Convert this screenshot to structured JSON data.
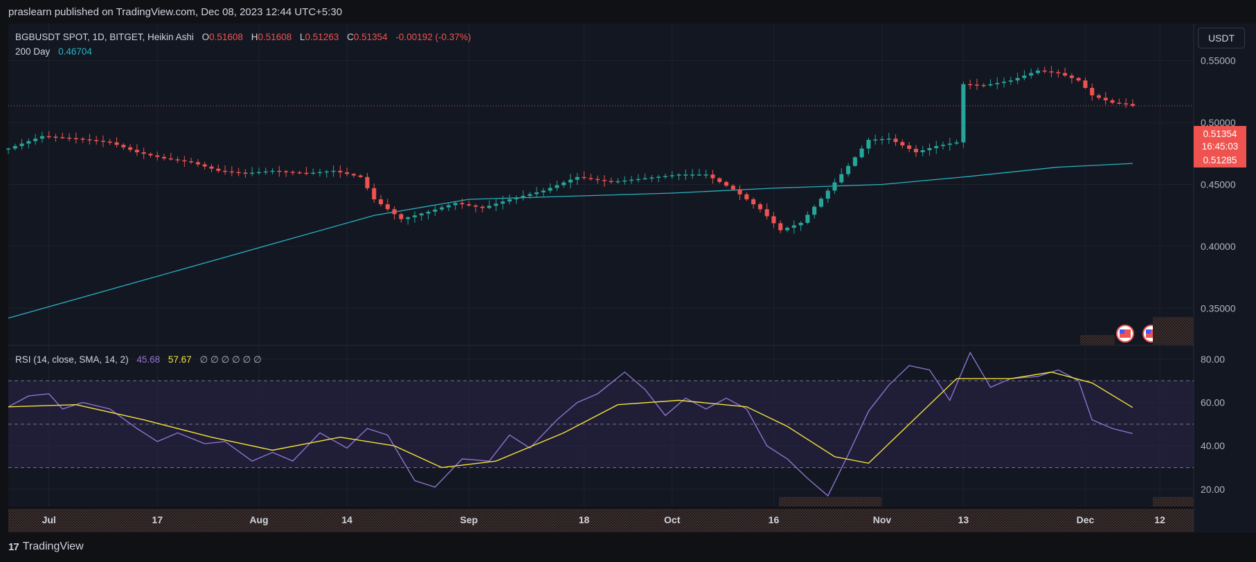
{
  "header": {
    "published_text": "praslearn published on TradingView.com, Dec 08, 2023 12:44 UTC+5:30"
  },
  "legend": {
    "symbol": "BGBUSDT SPOT, 1D, BITGET, Heikin Ashi",
    "o_label": "O",
    "o_value": "0.51608",
    "h_label": "H",
    "h_value": "0.51608",
    "l_label": "L",
    "l_value": "0.51263",
    "c_label": "C",
    "c_value": "0.51354",
    "change": "-0.00192 (-0.37%)",
    "ma_label": "200 Day",
    "ma_value": "0.46704"
  },
  "rsi_legend": {
    "label": "RSI (14, close, SMA, 14, 2)",
    "rsi_value": "45.68",
    "sma_value": "57.67",
    "extras": "∅ ∅ ∅ ∅ ∅ ∅"
  },
  "currency_button": "USDT",
  "price_badge": {
    "price": "0.51354",
    "countdown": "16:45:03",
    "ma": "0.51285"
  },
  "footer": {
    "brand": "TradingView",
    "logo_glyph": "17"
  },
  "colors": {
    "up": "#26a69a",
    "down": "#ef5350",
    "ma": "#2ab3c2",
    "rsi": "#7e57c2",
    "rsi_sma": "#f5e33b",
    "background": "#131722"
  },
  "chart_data": [
    {
      "type": "candlestick",
      "chart_style": "Heikin Ashi",
      "symbol": "BGBUSDT",
      "interval": "1D",
      "y_ticks": [
        "0.35000",
        "0.40000",
        "0.45000",
        "0.50000",
        "0.55000"
      ],
      "ylim": [
        0.32,
        0.58
      ],
      "x_ticks": [
        "Jul",
        "17",
        "Aug",
        "14",
        "Sep",
        "18",
        "Oct",
        "16",
        "Nov",
        "13",
        "Dec",
        "12"
      ],
      "x_tick_dates": [
        "2023-07-01",
        "2023-07-17",
        "2023-08-01",
        "2023-08-14",
        "2023-09-01",
        "2023-09-18",
        "2023-10-01",
        "2023-10-16",
        "2023-11-01",
        "2023-11-13",
        "2023-12-01",
        "2023-12-12"
      ],
      "x_range": [
        "2023-06-25",
        "2023-12-17"
      ],
      "last_price": 0.51354,
      "close_anchors": [
        [
          "2023-06-25",
          0.479
        ],
        [
          "2023-06-30",
          0.489
        ],
        [
          "2023-07-05",
          0.487
        ],
        [
          "2023-07-10",
          0.484
        ],
        [
          "2023-07-14",
          0.476
        ],
        [
          "2023-07-18",
          0.471
        ],
        [
          "2023-07-22",
          0.468
        ],
        [
          "2023-07-26",
          0.461
        ],
        [
          "2023-07-30",
          0.459
        ],
        [
          "2023-08-03",
          0.461
        ],
        [
          "2023-08-08",
          0.459
        ],
        [
          "2023-08-12",
          0.461
        ],
        [
          "2023-08-16",
          0.456
        ],
        [
          "2023-08-18",
          0.438
        ],
        [
          "2023-08-22",
          0.422
        ],
        [
          "2023-08-26",
          0.428
        ],
        [
          "2023-08-30",
          0.435
        ],
        [
          "2023-09-03",
          0.431
        ],
        [
          "2023-09-07",
          0.438
        ],
        [
          "2023-09-12",
          0.445
        ],
        [
          "2023-09-17",
          0.456
        ],
        [
          "2023-09-22",
          0.452
        ],
        [
          "2023-09-27",
          0.455
        ],
        [
          "2023-10-02",
          0.458
        ],
        [
          "2023-10-06",
          0.458
        ],
        [
          "2023-10-10",
          0.446
        ],
        [
          "2023-10-14",
          0.43
        ],
        [
          "2023-10-17",
          0.413
        ],
        [
          "2023-10-20",
          0.419
        ],
        [
          "2023-10-24",
          0.445
        ],
        [
          "2023-10-27",
          0.465
        ],
        [
          "2023-10-30",
          0.486
        ],
        [
          "2023-11-02",
          0.487
        ],
        [
          "2023-11-06",
          0.476
        ],
        [
          "2023-11-09",
          0.481
        ],
        [
          "2023-11-12",
          0.484
        ],
        [
          "2023-11-13",
          0.531
        ],
        [
          "2023-11-16",
          0.53
        ],
        [
          "2023-11-20",
          0.534
        ],
        [
          "2023-11-24",
          0.542
        ],
        [
          "2023-11-27",
          0.54
        ],
        [
          "2023-11-30",
          0.534
        ],
        [
          "2023-12-02",
          0.522
        ],
        [
          "2023-12-05",
          0.516
        ],
        [
          "2023-12-07",
          0.515
        ],
        [
          "2023-12-08",
          0.51354
        ]
      ],
      "ma200": {
        "name": "200 Day",
        "points": [
          [
            "2023-06-25",
            0.342
          ],
          [
            "2023-08-18",
            0.425
          ],
          [
            "2023-09-01",
            0.438
          ],
          [
            "2023-10-01",
            0.443
          ],
          [
            "2023-10-16",
            0.447
          ],
          [
            "2023-11-01",
            0.45
          ],
          [
            "2023-11-13",
            0.456
          ],
          [
            "2023-11-27",
            0.464
          ],
          [
            "2023-12-08",
            0.467
          ]
        ]
      }
    },
    {
      "type": "line",
      "indicator": "RSI (14, close, SMA, 14, 2)",
      "y_ticks": [
        "20.00",
        "40.00",
        "60.00",
        "80.00"
      ],
      "ylim": [
        12,
        86
      ],
      "bands": [
        30,
        50,
        70
      ],
      "series": [
        {
          "name": "RSI",
          "points": [
            [
              "2023-06-25",
              58
            ],
            [
              "2023-06-28",
              63
            ],
            [
              "2023-07-01",
              64
            ],
            [
              "2023-07-03",
              57
            ],
            [
              "2023-07-06",
              60
            ],
            [
              "2023-07-10",
              57
            ],
            [
              "2023-07-14",
              48
            ],
            [
              "2023-07-17",
              42
            ],
            [
              "2023-07-20",
              46
            ],
            [
              "2023-07-24",
              41
            ],
            [
              "2023-07-27",
              42
            ],
            [
              "2023-07-31",
              33
            ],
            [
              "2023-08-03",
              37
            ],
            [
              "2023-08-06",
              33
            ],
            [
              "2023-08-10",
              46
            ],
            [
              "2023-08-14",
              39
            ],
            [
              "2023-08-17",
              48
            ],
            [
              "2023-08-20",
              45
            ],
            [
              "2023-08-24",
              24
            ],
            [
              "2023-08-27",
              21
            ],
            [
              "2023-08-31",
              34
            ],
            [
              "2023-09-04",
              33
            ],
            [
              "2023-09-07",
              45
            ],
            [
              "2023-09-10",
              39
            ],
            [
              "2023-09-14",
              52
            ],
            [
              "2023-09-17",
              60
            ],
            [
              "2023-09-20",
              64
            ],
            [
              "2023-09-24",
              74
            ],
            [
              "2023-09-27",
              66
            ],
            [
              "2023-09-30",
              54
            ],
            [
              "2023-10-03",
              62
            ],
            [
              "2023-10-06",
              57
            ],
            [
              "2023-10-09",
              62
            ],
            [
              "2023-10-12",
              57
            ],
            [
              "2023-10-15",
              40
            ],
            [
              "2023-10-18",
              34
            ],
            [
              "2023-10-21",
              25
            ],
            [
              "2023-10-24",
              17
            ],
            [
              "2023-10-27",
              36
            ],
            [
              "2023-10-30",
              56
            ],
            [
              "2023-11-02",
              68
            ],
            [
              "2023-11-05",
              77
            ],
            [
              "2023-11-08",
              75
            ],
            [
              "2023-11-11",
              61
            ],
            [
              "2023-11-14",
              83
            ],
            [
              "2023-11-17",
              67
            ],
            [
              "2023-11-20",
              71
            ],
            [
              "2023-11-24",
              72
            ],
            [
              "2023-11-27",
              75
            ],
            [
              "2023-11-30",
              70
            ],
            [
              "2023-12-02",
              52
            ],
            [
              "2023-12-05",
              48
            ],
            [
              "2023-12-08",
              45.68
            ]
          ]
        },
        {
          "name": "SMA",
          "points": [
            [
              "2023-06-25",
              58
            ],
            [
              "2023-07-05",
              59
            ],
            [
              "2023-07-15",
              52
            ],
            [
              "2023-07-25",
              44
            ],
            [
              "2023-08-03",
              38
            ],
            [
              "2023-08-13",
              44
            ],
            [
              "2023-08-21",
              40
            ],
            [
              "2023-08-28",
              30
            ],
            [
              "2023-09-05",
              33
            ],
            [
              "2023-09-15",
              46
            ],
            [
              "2023-09-23",
              59
            ],
            [
              "2023-10-02",
              61
            ],
            [
              "2023-10-12",
              58
            ],
            [
              "2023-10-18",
              49
            ],
            [
              "2023-10-25",
              35
            ],
            [
              "2023-10-30",
              32
            ],
            [
              "2023-11-05",
              50
            ],
            [
              "2023-11-12",
              71
            ],
            [
              "2023-11-20",
              71
            ],
            [
              "2023-11-26",
              74
            ],
            [
              "2023-12-02",
              69
            ],
            [
              "2023-12-08",
              57.67
            ]
          ]
        }
      ]
    }
  ]
}
